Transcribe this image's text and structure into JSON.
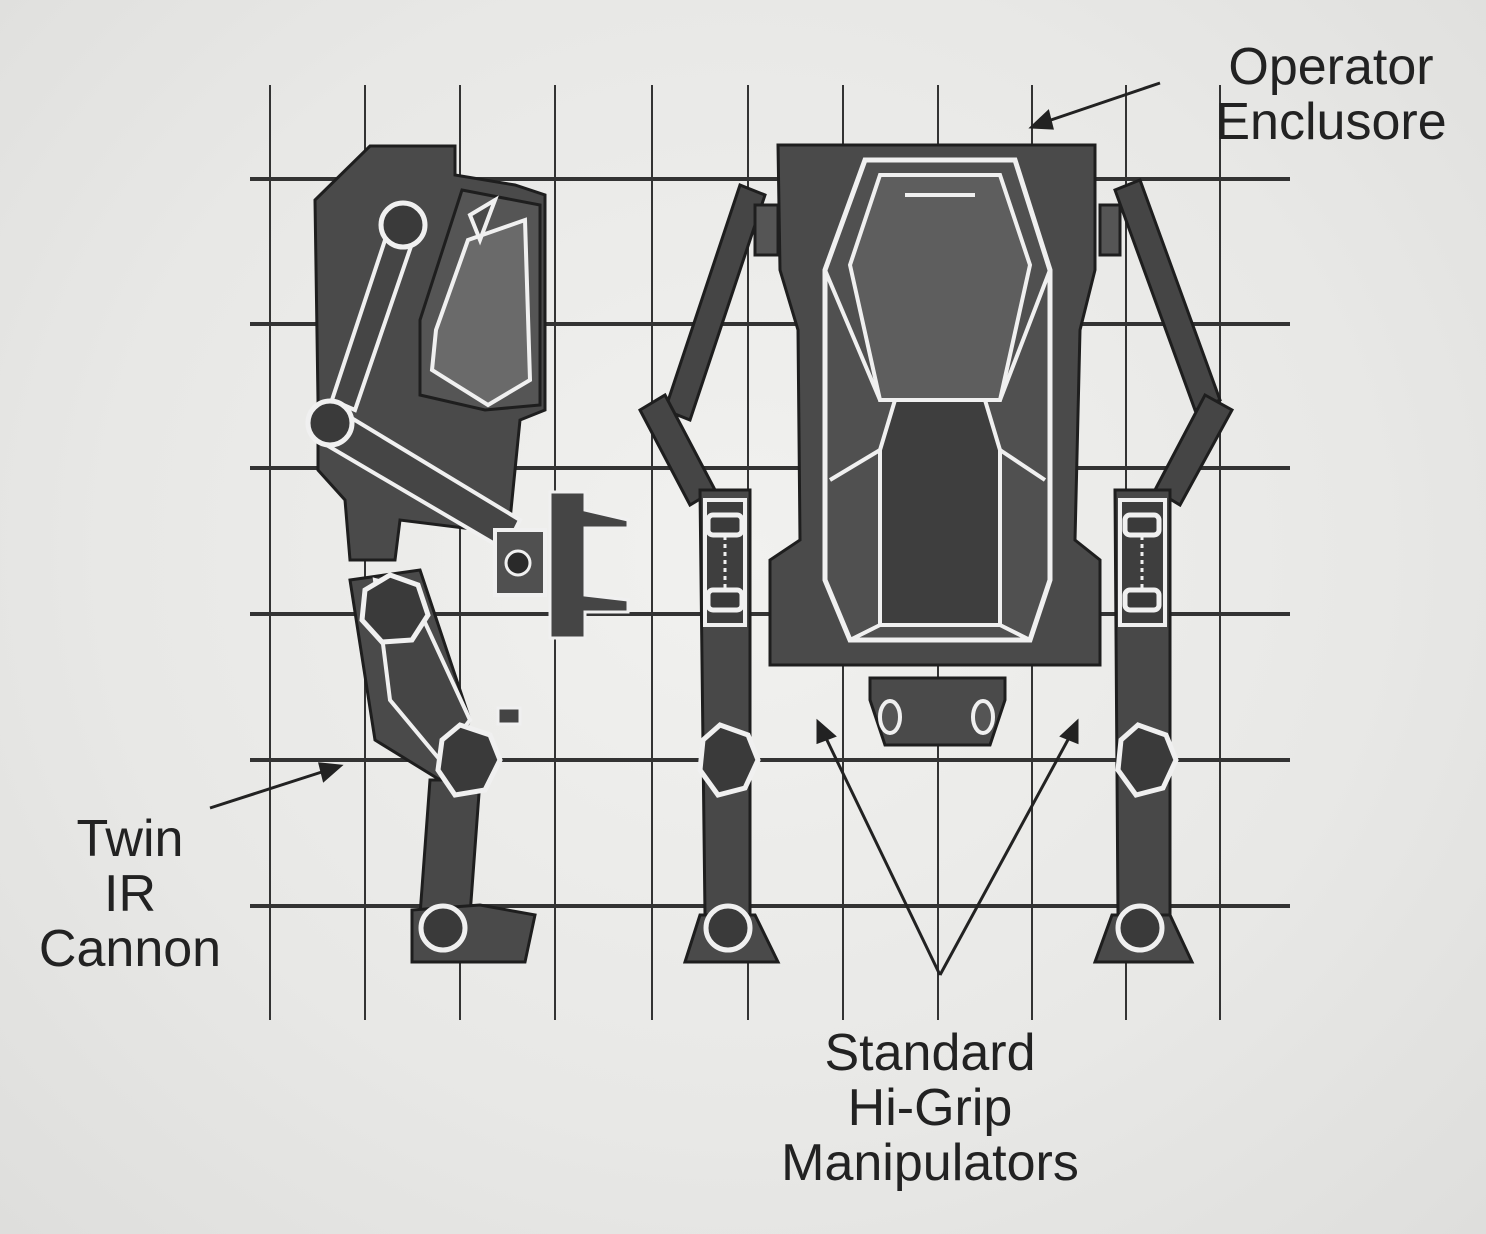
{
  "labels": {
    "operator_enclosure": [
      "Operator",
      "Enclusore"
    ],
    "twin_ir_cannon": [
      "Twin",
      "IR",
      "Cannon"
    ],
    "manipulators": [
      "Standard",
      "Hi-Grip",
      "Manipulators"
    ]
  },
  "colors": {
    "paper": "#e9e9e7",
    "ink": "#3a3a3a",
    "body_fill": "#4a4a4a",
    "panel_fill": "#5a5a5a",
    "highlight": "#f0f0f0",
    "grid": "#333333"
  }
}
